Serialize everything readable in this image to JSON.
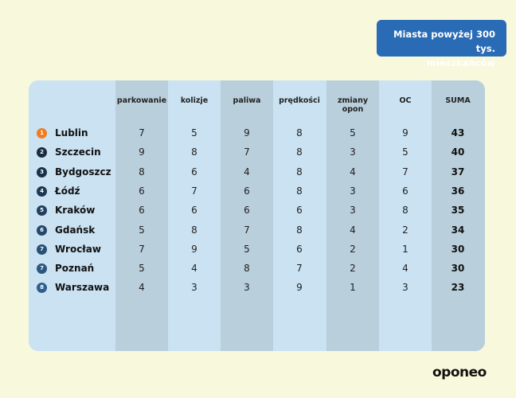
{
  "title": {
    "line1": "Miasta powyżej 300 tys.",
    "line2": "mieszkańców"
  },
  "columns": [
    "parkowanie",
    "kolizje",
    "paliwa",
    "prędkości",
    "zmiany opon",
    "OC",
    "SUMA"
  ],
  "rows": [
    {
      "rank": "1",
      "city": "Lublin",
      "values": [
        "7",
        "5",
        "9",
        "8",
        "5",
        "9"
      ],
      "sum": "43",
      "badge_color": "#f07c22"
    },
    {
      "rank": "2",
      "city": "Szczecin",
      "values": [
        "9",
        "8",
        "7",
        "8",
        "3",
        "5"
      ],
      "sum": "40",
      "badge_color": "#172a40"
    },
    {
      "rank": "3",
      "city": "Bydgoszcz",
      "values": [
        "8",
        "6",
        "4",
        "8",
        "4",
        "7"
      ],
      "sum": "37",
      "badge_color": "#1a3049"
    },
    {
      "rank": "4",
      "city": "Łódź",
      "values": [
        "6",
        "7",
        "6",
        "8",
        "3",
        "6"
      ],
      "sum": "36",
      "badge_color": "#1d3853"
    },
    {
      "rank": "5",
      "city": "Kraków",
      "values": [
        "6",
        "6",
        "6",
        "6",
        "3",
        "8"
      ],
      "sum": "35",
      "badge_color": "#21405f"
    },
    {
      "rank": "6",
      "city": "Gdańsk",
      "values": [
        "5",
        "8",
        "7",
        "8",
        "4",
        "2"
      ],
      "sum": "34",
      "badge_color": "#24486a"
    },
    {
      "rank": "7",
      "city": "Wrocław",
      "values": [
        "7",
        "9",
        "5",
        "6",
        "2",
        "1"
      ],
      "sum": "30",
      "badge_color": "#275075"
    },
    {
      "rank": "7",
      "city": "Poznań",
      "values": [
        "5",
        "4",
        "8",
        "7",
        "2",
        "4"
      ],
      "sum": "30",
      "badge_color": "#2a5780"
    },
    {
      "rank": "8",
      "city": "Warszawa",
      "values": [
        "4",
        "3",
        "3",
        "9",
        "1",
        "3"
      ],
      "sum": "23",
      "badge_color": "#2e5f8c"
    }
  ],
  "brand": "oponeo",
  "colors": {
    "background": "#f8f8dc",
    "title_box": "#2a6bb5",
    "table_light": "#cae2f2",
    "table_dark": "#b9cfdc"
  },
  "chart_data": {
    "type": "table",
    "title": "Miasta powyżej 300 tys. mieszkańców",
    "columns": [
      "Miasto",
      "parkowanie",
      "kolizje",
      "paliwa",
      "prędkości",
      "zmiany opon",
      "OC",
      "SUMA"
    ],
    "categories": [
      "Lublin",
      "Szczecin",
      "Bydgoszcz",
      "Łódź",
      "Kraków",
      "Gdańsk",
      "Wrocław",
      "Poznań",
      "Warszawa"
    ],
    "ranks": [
      1,
      2,
      3,
      4,
      5,
      6,
      7,
      7,
      8
    ],
    "series": [
      {
        "name": "parkowanie",
        "values": [
          7,
          9,
          8,
          6,
          6,
          5,
          7,
          5,
          4
        ]
      },
      {
        "name": "kolizje",
        "values": [
          5,
          8,
          6,
          7,
          6,
          8,
          9,
          4,
          3
        ]
      },
      {
        "name": "paliwa",
        "values": [
          9,
          7,
          4,
          6,
          6,
          7,
          5,
          8,
          3
        ]
      },
      {
        "name": "prędkości",
        "values": [
          8,
          8,
          8,
          8,
          6,
          8,
          6,
          7,
          9
        ]
      },
      {
        "name": "zmiany opon",
        "values": [
          5,
          3,
          4,
          3,
          3,
          4,
          2,
          2,
          1
        ]
      },
      {
        "name": "OC",
        "values": [
          9,
          5,
          7,
          6,
          8,
          2,
          1,
          4,
          3
        ]
      },
      {
        "name": "SUMA",
        "values": [
          43,
          40,
          37,
          36,
          35,
          34,
          30,
          30,
          23
        ]
      }
    ]
  }
}
